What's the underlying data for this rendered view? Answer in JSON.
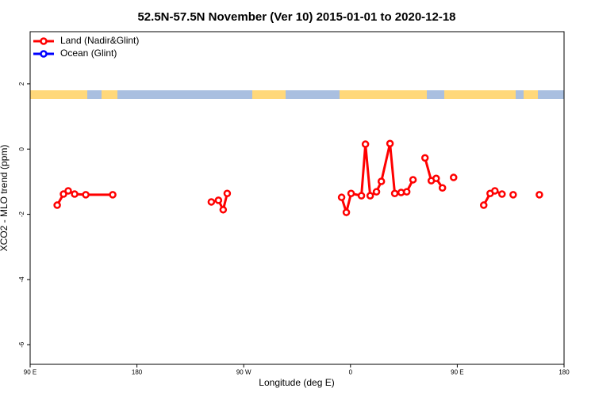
{
  "chart_data": {
    "type": "line",
    "title": "52.5N-57.5N November (Ver 10)   2015-01-01 to 2020-12-18",
    "x_label": "Longitude (deg E)",
    "y_label": "XCO2 - MLO trend (ppm)",
    "xlim": [
      90,
      540
    ],
    "ylim": [
      -6.6,
      3.6
    ],
    "xticks": [
      {
        "value": 90,
        "label": "90 E"
      },
      180,
      {
        "value": 270,
        "label": "90 W"
      },
      {
        "value": 360,
        "label": "0"
      },
      {
        "value": 450,
        "label": "90 E"
      },
      180
    ],
    "yticks": [
      2,
      0,
      -2,
      -4,
      -6
    ],
    "legend": "top-left",
    "series": [
      {
        "name": "Land (Nadir&Glint)",
        "color": "#ff0000",
        "x": [
          112.8,
          118.1,
          122.1,
          127.5,
          136.9,
          159.6,
          null,
          242.7,
          248.7,
          252.7,
          256.1,
          null,
          352.5,
          356.5,
          360.5,
          369.2,
          372.6,
          376.6,
          381.9,
          386.0,
          393.3,
          397.3,
          402.7,
          407.4,
          412.7,
          null,
          422.8,
          428.1,
          432.2,
          437.5,
          null,
          446.9,
          null,
          472.3,
          477.7,
          481.7,
          487.7,
          null,
          497.1,
          null,
          519.2
        ],
        "values": [
          -1.72,
          -1.38,
          -1.28,
          -1.38,
          -1.4,
          -1.4,
          null,
          -1.62,
          -1.57,
          -1.86,
          -1.36,
          null,
          -1.48,
          -1.94,
          -1.36,
          -1.43,
          0.15,
          -1.43,
          -1.31,
          -0.99,
          0.17,
          -1.36,
          -1.33,
          -1.31,
          -0.94,
          null,
          -0.27,
          -0.97,
          -0.9,
          -1.19,
          null,
          -0.87,
          null,
          -1.72,
          -1.36,
          -1.28,
          -1.38,
          null,
          -1.4,
          null,
          -1.4
        ]
      },
      {
        "name": "Ocean (Glint)",
        "color": "#0000ff",
        "x": [],
        "values": []
      }
    ]
  }
}
